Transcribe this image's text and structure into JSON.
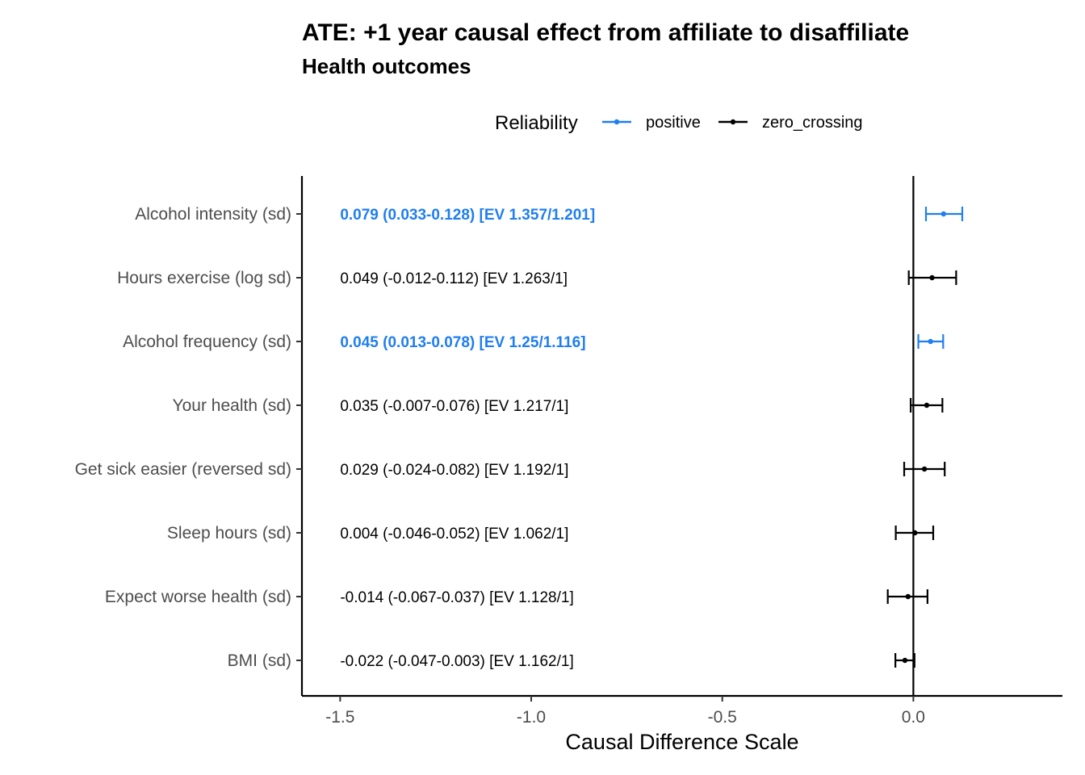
{
  "chart_data": {
    "type": "forest",
    "title": "ATE: +1 year causal effect from affiliate to disaffiliate",
    "subtitle": "Health outcomes",
    "xlabel": "Causal Difference Scale",
    "xlim": [
      -1.6,
      0.39
    ],
    "xticks": [
      -1.5,
      -1.0,
      -0.5,
      0.0
    ],
    "xtick_labels": [
      "-1.5",
      "-1.0",
      "-0.5",
      "0.0"
    ],
    "reference_line": 0,
    "grid": false,
    "legend": {
      "title": "Reliability",
      "placement": "top",
      "entries": [
        {
          "key": "positive",
          "label": "positive",
          "color": "#1f7ef0"
        },
        {
          "key": "zero_crossing",
          "label": "zero_crossing",
          "color": "#000000"
        }
      ]
    },
    "rows": [
      {
        "label": "Alcohol intensity (sd)",
        "estimate": 0.079,
        "lower": 0.033,
        "upper": 0.128,
        "group": "positive",
        "annotation": "0.079 (0.033-0.128) [EV 1.357/1.201]"
      },
      {
        "label": "Hours exercise (log sd)",
        "estimate": 0.049,
        "lower": -0.012,
        "upper": 0.112,
        "group": "zero_crossing",
        "annotation": "0.049 (-0.012-0.112) [EV 1.263/1]"
      },
      {
        "label": "Alcohol frequency (sd)",
        "estimate": 0.045,
        "lower": 0.013,
        "upper": 0.078,
        "group": "positive",
        "annotation": "0.045 (0.013-0.078) [EV 1.25/1.116]"
      },
      {
        "label": "Your health (sd)",
        "estimate": 0.035,
        "lower": -0.007,
        "upper": 0.076,
        "group": "zero_crossing",
        "annotation": "0.035 (-0.007-0.076) [EV 1.217/1]"
      },
      {
        "label": "Get sick easier (reversed sd)",
        "estimate": 0.029,
        "lower": -0.024,
        "upper": 0.082,
        "group": "zero_crossing",
        "annotation": "0.029 (-0.024-0.082) [EV 1.192/1]"
      },
      {
        "label": "Sleep hours (sd)",
        "estimate": 0.004,
        "lower": -0.046,
        "upper": 0.052,
        "group": "zero_crossing",
        "annotation": "0.004 (-0.046-0.052) [EV 1.062/1]"
      },
      {
        "label": "Expect worse health (sd)",
        "estimate": -0.014,
        "lower": -0.067,
        "upper": 0.037,
        "group": "zero_crossing",
        "annotation": "-0.014 (-0.067-0.037) [EV 1.128/1]"
      },
      {
        "label": "BMI (sd)",
        "estimate": -0.022,
        "lower": -0.047,
        "upper": 0.003,
        "group": "zero_crossing",
        "annotation": "-0.022 (-0.047-0.003) [EV 1.162/1]"
      }
    ],
    "annotation_x": -1.5
  }
}
